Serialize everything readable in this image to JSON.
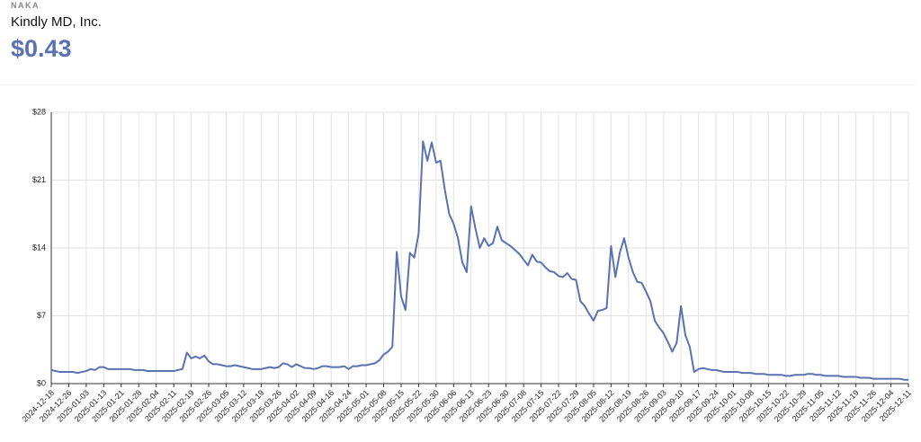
{
  "header": {
    "ticker": "NAKA",
    "company": "Kindly MD, Inc.",
    "price": "$0.43"
  },
  "chart_data": {
    "type": "line",
    "categories": [
      "2024-12-18",
      null,
      null,
      null,
      "2024-12-26",
      null,
      null,
      null,
      "2025-01-03",
      null,
      null,
      null,
      "2025-01-13",
      null,
      null,
      null,
      "2025-01-21",
      null,
      null,
      null,
      "2025-01-28",
      null,
      null,
      null,
      "2025-02-04",
      null,
      null,
      null,
      "2025-02-11",
      null,
      null,
      null,
      "2025-02-19",
      null,
      null,
      null,
      "2025-02-26",
      null,
      null,
      null,
      "2025-03-05",
      null,
      null,
      null,
      "2025-03-12",
      null,
      null,
      null,
      "2025-03-19",
      null,
      null,
      null,
      "2025-03-26",
      null,
      null,
      null,
      "2025-04-02",
      null,
      null,
      null,
      "2025-04-09",
      null,
      null,
      null,
      "2025-04-16",
      null,
      null,
      null,
      "2025-04-24",
      null,
      null,
      null,
      "2025-05-01",
      null,
      null,
      null,
      "2025-05-08",
      null,
      null,
      null,
      "2025-05-15",
      null,
      null,
      null,
      "2025-05-22",
      null,
      null,
      null,
      "2025-05-30",
      null,
      null,
      null,
      "2025-06-06",
      null,
      null,
      null,
      "2025-06-13",
      null,
      null,
      null,
      "2025-06-23",
      null,
      null,
      null,
      "2025-06-30",
      null,
      null,
      null,
      "2025-07-08",
      null,
      null,
      null,
      "2025-07-15",
      null,
      null,
      null,
      "2025-07-22",
      null,
      null,
      null,
      "2025-07-29",
      null,
      null,
      null,
      "2025-08-05",
      null,
      null,
      null,
      "2025-08-12",
      null,
      null,
      null,
      "2025-08-19",
      null,
      null,
      null,
      "2025-08-26",
      null,
      null,
      null,
      "2025-09-03",
      null,
      null,
      null,
      "2025-09-10",
      null,
      null,
      null,
      "2025-09-17",
      null,
      null,
      null,
      "2025-09-24",
      null,
      null,
      null,
      "2025-10-01",
      null,
      null,
      null,
      "2025-10-08",
      null,
      null,
      null,
      "2025-10-15",
      null,
      null,
      null,
      "2025-10-22",
      null,
      null,
      null,
      "2025-10-29",
      null,
      null,
      null,
      "2025-11-05",
      null,
      null,
      null,
      "2025-11-12",
      null,
      null,
      null,
      "2025-11-19",
      null,
      null,
      null,
      "2025-11-26",
      null,
      null,
      null,
      "2025-12-04",
      null,
      null,
      null,
      "2025-12-11"
    ],
    "series": [
      {
        "color": "#5a72b0",
        "values": [
          1.4,
          1.3,
          1.2,
          1.2,
          1.2,
          1.2,
          1.1,
          1.2,
          1.3,
          1.5,
          1.4,
          1.7,
          1.7,
          1.5,
          1.5,
          1.5,
          1.5,
          1.5,
          1.5,
          1.4,
          1.4,
          1.4,
          1.3,
          1.3,
          1.3,
          1.3,
          1.3,
          1.3,
          1.3,
          1.4,
          1.5,
          3.2,
          2.6,
          2.8,
          2.6,
          2.9,
          2.3,
          2.0,
          2.0,
          1.9,
          1.8,
          1.8,
          1.9,
          1.8,
          1.7,
          1.6,
          1.5,
          1.5,
          1.5,
          1.6,
          1.7,
          1.6,
          1.7,
          2.1,
          2.0,
          1.7,
          2.0,
          1.8,
          1.6,
          1.6,
          1.5,
          1.6,
          1.8,
          1.8,
          1.7,
          1.7,
          1.7,
          1.8,
          1.5,
          1.8,
          1.8,
          1.9,
          1.9,
          2.0,
          2.1,
          2.4,
          3.0,
          3.3,
          3.8,
          13.6,
          9.0,
          7.6,
          13.5,
          13.0,
          15.5,
          25.0,
          23.0,
          24.9,
          22.8,
          23.0,
          20.0,
          17.5,
          16.5,
          15.0,
          12.5,
          11.5,
          18.3,
          16.0,
          14.0,
          15.0,
          14.2,
          14.5,
          16.2,
          14.8,
          14.5,
          14.2,
          13.8,
          13.4,
          12.8,
          12.2,
          13.3,
          12.6,
          12.5,
          12.0,
          11.6,
          11.5,
          11.1,
          11.0,
          11.4,
          10.8,
          10.7,
          8.5,
          8.0,
          7.2,
          6.5,
          7.5,
          7.6,
          7.8,
          14.2,
          11.0,
          13.5,
          15.0,
          13.0,
          11.5,
          10.5,
          10.4,
          9.5,
          8.5,
          6.5,
          5.8,
          5.2,
          4.3,
          3.3,
          4.2,
          8.0,
          5.0,
          3.8,
          1.2,
          1.5,
          1.6,
          1.5,
          1.4,
          1.4,
          1.3,
          1.2,
          1.2,
          1.2,
          1.2,
          1.1,
          1.1,
          1.1,
          1.0,
          1.0,
          1.0,
          0.9,
          0.9,
          0.9,
          0.9,
          0.8,
          0.8,
          0.9,
          0.9,
          0.9,
          1.0,
          1.0,
          0.9,
          0.9,
          0.8,
          0.8,
          0.8,
          0.8,
          0.7,
          0.7,
          0.7,
          0.7,
          0.6,
          0.6,
          0.6,
          0.5,
          0.5,
          0.5,
          0.5,
          0.5,
          0.5,
          0.5,
          0.4,
          0.4
        ]
      }
    ],
    "ylim": [
      0,
      28
    ],
    "yticks": [
      {
        "value": 0,
        "label": "$0"
      },
      {
        "value": 7,
        "label": "$7"
      },
      {
        "value": 14,
        "label": "$14"
      },
      {
        "value": 21,
        "label": "$21"
      },
      {
        "value": 28,
        "label": "$28"
      }
    ],
    "grid": true
  }
}
